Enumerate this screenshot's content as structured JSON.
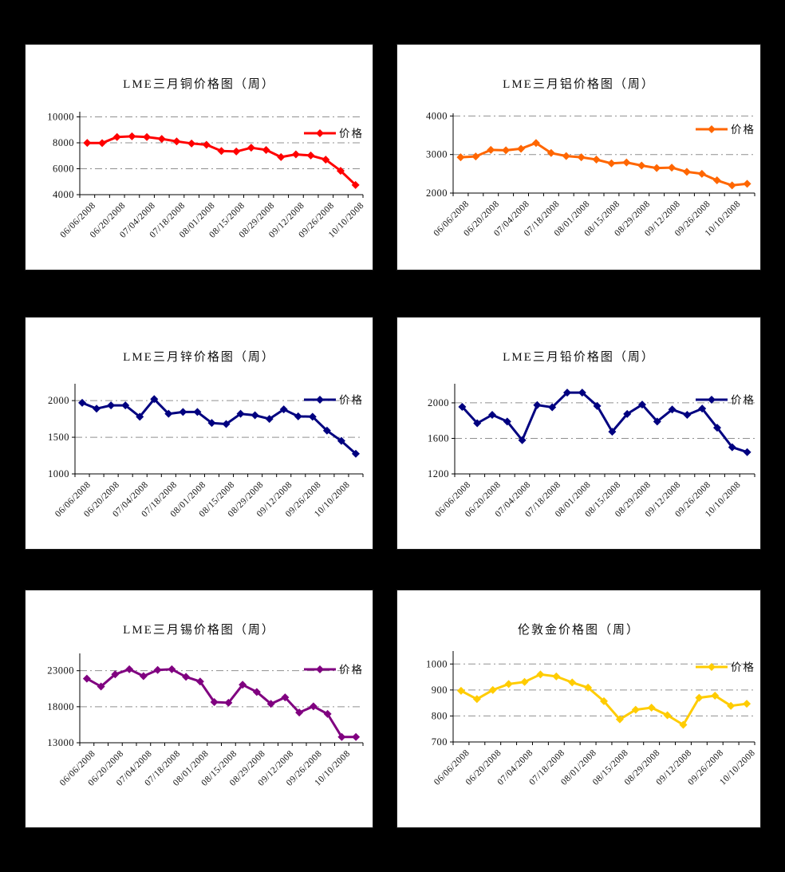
{
  "page": {
    "background": "#000000",
    "panel_background": "#FFFFFF",
    "axis_color": "#000000",
    "grid_color": "#909090",
    "text_color": "#111111"
  },
  "chart_data": [
    {
      "key": "copper",
      "type": "line",
      "title": "LME三月铜价格图（周）",
      "legend": "价格",
      "color": "#FF0000",
      "ylim": [
        4000,
        10400
      ],
      "yticks": [
        4000,
        6000,
        8000,
        10000
      ],
      "x_labels": [
        "06/06/2008",
        "06/20/2008",
        "07/04/2008",
        "07/18/2008",
        "08/01/2008",
        "08/15/2008",
        "08/29/2008",
        "09/12/2008",
        "09/26/2008",
        "10/10/2008"
      ],
      "values": [
        7990,
        7980,
        8450,
        8500,
        8450,
        8300,
        8110,
        7950,
        7850,
        7370,
        7330,
        7620,
        7450,
        6900,
        7110,
        7020,
        6700,
        5840,
        4750
      ]
    },
    {
      "key": "aluminum",
      "type": "line",
      "title": "LME三月铝价格图（周）",
      "legend": "价格",
      "color": "#FF6600",
      "ylim": [
        2000,
        4070
      ],
      "yticks": [
        2000,
        3000,
        4000
      ],
      "x_labels": [
        "06/06/2008",
        "06/20/2008",
        "07/04/2008",
        "07/18/2008",
        "08/01/2008",
        "08/15/2008",
        "08/29/2008",
        "09/12/2008",
        "09/26/2008",
        "10/10/2008"
      ],
      "values": [
        2930,
        2950,
        3120,
        3110,
        3150,
        3300,
        3040,
        2960,
        2930,
        2870,
        2770,
        2795,
        2715,
        2650,
        2660,
        2550,
        2500,
        2330,
        2200,
        2240
      ]
    },
    {
      "key": "zinc",
      "type": "line",
      "title": "LME三月锌价格图（周）",
      "legend": "价格",
      "color": "#000080",
      "ylim": [
        1000,
        2230
      ],
      "yticks": [
        1000,
        1500,
        2000
      ],
      "x_labels": [
        "06/06/2008",
        "06/20/2008",
        "07/04/2008",
        "07/18/2008",
        "08/01/2008",
        "08/15/2008",
        "08/29/2008",
        "09/12/2008",
        "09/26/2008",
        "10/10/2008"
      ],
      "values": [
        1970,
        1890,
        1935,
        1935,
        1780,
        2020,
        1820,
        1845,
        1845,
        1695,
        1680,
        1820,
        1800,
        1750,
        1880,
        1785,
        1780,
        1590,
        1450,
        1275
      ]
    },
    {
      "key": "lead",
      "type": "line",
      "title": "LME三月铅价格图（周）",
      "legend": "价格",
      "color": "#000080",
      "ylim": [
        1200,
        2215
      ],
      "yticks": [
        1200,
        1600,
        2000
      ],
      "x_labels": [
        "06/06/2008",
        "06/20/2008",
        "07/04/2008",
        "07/18/2008",
        "08/01/2008",
        "08/15/2008",
        "08/29/2008",
        "09/12/2008",
        "09/26/2008",
        "10/10/2008"
      ],
      "values": [
        1955,
        1770,
        1865,
        1790,
        1580,
        1975,
        1950,
        2115,
        2115,
        1965,
        1675,
        1875,
        1980,
        1790,
        1925,
        1865,
        1935,
        1720,
        1500,
        1445
      ]
    },
    {
      "key": "tin",
      "type": "line",
      "title": "LME三月锡价格图（周）",
      "legend": "价格",
      "color": "#800080",
      "ylim": [
        13000,
        25400
      ],
      "yticks": [
        13000,
        18000,
        23000
      ],
      "x_labels": [
        "06/06/2008",
        "06/20/2008",
        "07/04/2008",
        "07/18/2008",
        "08/01/2008",
        "08/15/2008",
        "08/29/2008",
        "09/12/2008",
        "09/26/2008",
        "10/10/2008"
      ],
      "values": [
        21900,
        20800,
        22500,
        23200,
        22250,
        23100,
        23200,
        22150,
        21500,
        18650,
        18550,
        21050,
        20050,
        18400,
        19300,
        17200,
        18050,
        17000,
        13800,
        13800
      ]
    },
    {
      "key": "gold",
      "type": "line",
      "title": "伦敦金价格图（周）",
      "legend": "价格",
      "color": "#FFCC00",
      "ylim": [
        700,
        1050
      ],
      "yticks": [
        700,
        800,
        900,
        1000
      ],
      "x_labels": [
        "06/06/2008",
        "06/20/2008",
        "07/04/2008",
        "07/18/2008",
        "08/01/2008",
        "08/15/2008",
        "08/29/2008",
        "09/12/2008",
        "09/26/2008",
        "10/10/2008"
      ],
      "values": [
        897,
        865,
        900,
        923,
        931,
        960,
        952,
        929,
        909,
        857,
        787,
        824,
        832,
        803,
        766,
        870,
        878,
        839,
        847
      ]
    }
  ]
}
